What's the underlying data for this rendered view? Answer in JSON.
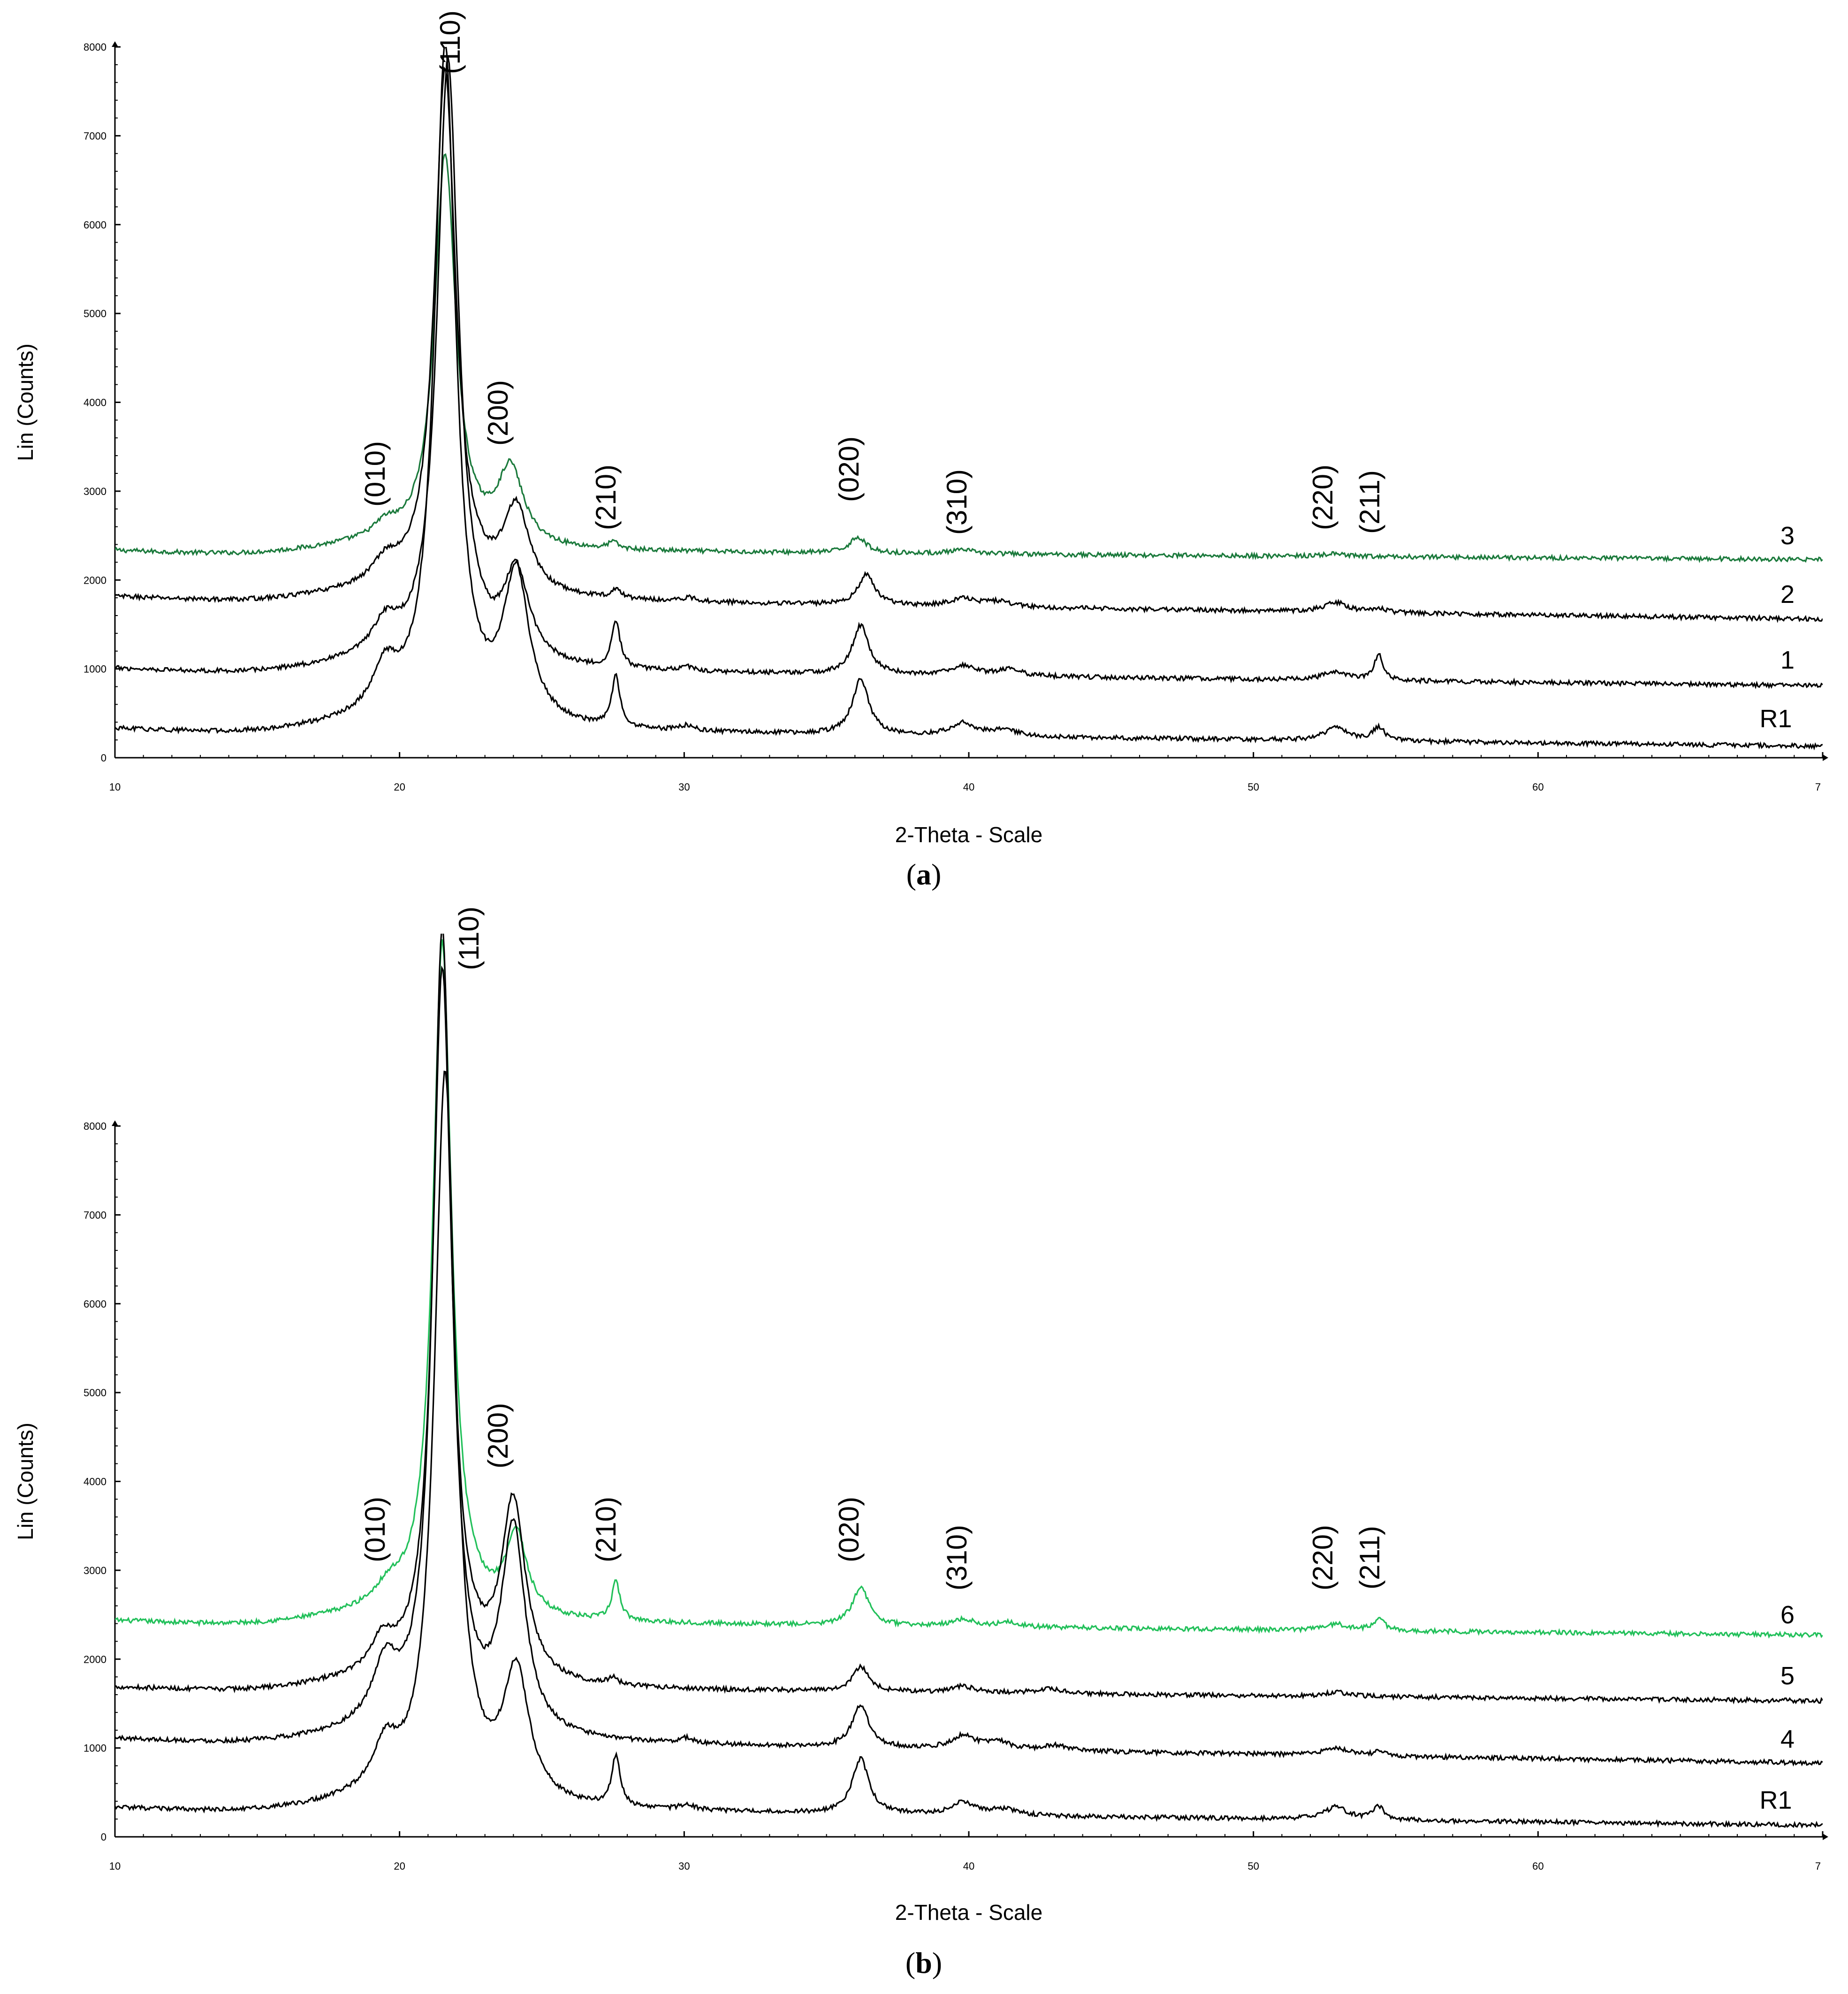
{
  "colors": {
    "black": "#000000",
    "green": "#1b7a3c",
    "light_green": "#22c05a"
  },
  "chart_data": [
    {
      "type": "line",
      "panel_label": "a",
      "xlabel": "2-Theta - Scale",
      "ylabel": "Lin (Counts)",
      "xlim": [
        10,
        70
      ],
      "ylim": [
        0,
        8000
      ],
      "x_ticks": [
        "10",
        "20",
        "30",
        "40",
        "50",
        "60",
        "7"
      ],
      "y_ticks": [
        "0",
        "1000",
        "2000",
        "3000",
        "4000",
        "5000",
        "6000",
        "7000",
        "8000"
      ],
      "grid": false,
      "annotations": [
        {
          "text": "(010)",
          "x": 19.5,
          "y": 2780
        },
        {
          "text": "(110)",
          "x": 22.0,
          "y": 7600
        },
        {
          "text": "(200)",
          "x": 24.1,
          "y": 3520
        },
        {
          "text": "(210)",
          "x": 27.5,
          "y": 2600
        },
        {
          "text": "(020)",
          "x": 36.2,
          "y": 2820
        },
        {
          "text": "(310)",
          "x": 39.8,
          "y": 2570
        },
        {
          "text": "(220)",
          "x": 52.8,
          "y": 2620
        },
        {
          "text": "(211)",
          "x": 54.6,
          "y": 2570
        }
      ],
      "series": [
        {
          "name": "3",
          "color": "#1b7a3c",
          "baseline_start": 2350,
          "baseline_end": 2230,
          "peaks": [
            [
              19.5,
              150,
              0.5
            ],
            [
              21.6,
              4400,
              0.45
            ],
            [
              23.9,
              850,
              0.55
            ],
            [
              27.5,
              80,
              0.2
            ],
            [
              36.1,
              180,
              0.35
            ],
            [
              39.8,
              40,
              0.6
            ],
            [
              52.8,
              30,
              0.4
            ]
          ]
        },
        {
          "name": "2",
          "color": "#000000",
          "baseline_start": 1830,
          "baseline_end": 1560,
          "peaks": [
            [
              19.5,
              250,
              0.55
            ],
            [
              21.6,
              5900,
              0.45
            ],
            [
              24.1,
              950,
              0.55
            ],
            [
              27.6,
              100,
              0.2
            ],
            [
              30.2,
              40,
              0.3
            ],
            [
              36.4,
              340,
              0.35
            ],
            [
              39.8,
              90,
              0.5
            ],
            [
              41.0,
              60,
              0.6
            ],
            [
              52.9,
              110,
              0.5
            ],
            [
              54.4,
              40,
              0.3
            ]
          ]
        },
        {
          "name": "1",
          "color": "#000000",
          "baseline_start": 1020,
          "baseline_end": 810,
          "peaks": [
            [
              19.5,
              350,
              0.55
            ],
            [
              21.7,
              6800,
              0.45
            ],
            [
              24.1,
              1000,
              0.55
            ],
            [
              27.6,
              520,
              0.18
            ],
            [
              30.1,
              50,
              0.3
            ],
            [
              36.2,
              550,
              0.35
            ],
            [
              39.8,
              110,
              0.5
            ],
            [
              41.4,
              80,
              0.5
            ],
            [
              52.9,
              100,
              0.5
            ],
            [
              54.4,
              300,
              0.18
            ]
          ]
        },
        {
          "name": "R1",
          "color": "#000000",
          "baseline_start": 340,
          "baseline_end": 130,
          "peaks": [
            [
              19.5,
              500,
              0.55
            ],
            [
              21.6,
              7600,
              0.45
            ],
            [
              24.1,
              1650,
              0.55
            ],
            [
              27.6,
              560,
              0.18
            ],
            [
              30.1,
              60,
              0.3
            ],
            [
              36.2,
              620,
              0.35
            ],
            [
              39.8,
              140,
              0.5
            ],
            [
              41.2,
              70,
              0.6
            ],
            [
              52.9,
              140,
              0.5
            ],
            [
              54.4,
              150,
              0.25
            ]
          ]
        }
      ],
      "series_labels": [
        "3",
        "2",
        "1",
        "R1"
      ]
    },
    {
      "type": "line",
      "panel_label": "b",
      "xlabel": "2-Theta - Scale",
      "ylabel": "Lin (Counts)",
      "xlim": [
        10,
        70
      ],
      "ylim": [
        0,
        8000
      ],
      "x_ticks": [
        "10",
        "20",
        "30",
        "40",
        "50",
        "60",
        "7"
      ],
      "y_ticks": [
        "0",
        "1000",
        "2000",
        "3000",
        "4000",
        "5000",
        "6000",
        "7000",
        "8000"
      ],
      "grid": false,
      "annotations": [
        {
          "text": "(010)",
          "x": 19.5,
          "y": 2880
        },
        {
          "text": "(110)",
          "x": 22.0,
          "y": 9700
        },
        {
          "text": "(200)",
          "x": 24.0,
          "y": 3850
        },
        {
          "text": "(210)",
          "x": 27.6,
          "y": 2880
        },
        {
          "text": "(020)",
          "x": 36.2,
          "y": 2880
        },
        {
          "text": "(310)",
          "x": 39.8,
          "y": 2620
        },
        {
          "text": "(220)",
          "x": 52.8,
          "y": 2620
        },
        {
          "text": "(211)",
          "x": 54.6,
          "y": 2620
        }
      ],
      "series": [
        {
          "name": "6",
          "color": "#22c05a",
          "baseline_start": 2450,
          "baseline_end": 2270,
          "peaks": [
            [
              19.6,
              200,
              0.6
            ],
            [
              21.5,
              7600,
              0.4
            ],
            [
              24.1,
              900,
              0.45
            ],
            [
              27.6,
              430,
              0.18
            ],
            [
              36.2,
              430,
              0.35
            ],
            [
              39.8,
              80,
              0.5
            ],
            [
              41.4,
              60,
              0.4
            ],
            [
              52.9,
              70,
              0.5
            ],
            [
              54.4,
              130,
              0.25
            ]
          ]
        },
        {
          "name": "5",
          "color": "#000000",
          "baseline_start": 1700,
          "baseline_end": 1530,
          "peaks": [
            [
              19.4,
              350,
              0.5
            ],
            [
              21.5,
              8000,
              0.4
            ],
            [
              24.0,
              2000,
              0.5
            ],
            [
              27.5,
              80,
              0.2
            ],
            [
              36.2,
              280,
              0.35
            ],
            [
              39.8,
              70,
              0.5
            ],
            [
              42.8,
              50,
              0.6
            ],
            [
              52.9,
              50,
              0.5
            ]
          ]
        },
        {
          "name": "4",
          "color": "#000000",
          "baseline_start": 1120,
          "baseline_end": 830,
          "peaks": [
            [
              19.5,
              650,
              0.55
            ],
            [
              21.5,
              9000,
              0.4
            ],
            [
              24.0,
              2300,
              0.5
            ],
            [
              30.1,
              60,
              0.3
            ],
            [
              36.2,
              480,
              0.35
            ],
            [
              39.8,
              150,
              0.5
            ],
            [
              41.0,
              90,
              0.5
            ],
            [
              43.0,
              60,
              0.5
            ],
            [
              52.9,
              90,
              0.5
            ],
            [
              54.4,
              40,
              0.3
            ]
          ]
        },
        {
          "name": "R1",
          "color": "#000000",
          "baseline_start": 340,
          "baseline_end": 130,
          "peaks": [
            [
              19.5,
              500,
              0.55
            ],
            [
              21.6,
              8200,
              0.45
            ],
            [
              24.1,
              1450,
              0.55
            ],
            [
              27.6,
              560,
              0.18
            ],
            [
              30.1,
              60,
              0.3
            ],
            [
              36.2,
              620,
              0.35
            ],
            [
              39.8,
              140,
              0.5
            ],
            [
              41.2,
              70,
              0.6
            ],
            [
              52.9,
              140,
              0.5
            ],
            [
              54.4,
              150,
              0.25
            ]
          ]
        }
      ],
      "series_labels": [
        "6",
        "5",
        "4",
        "R1"
      ]
    }
  ]
}
